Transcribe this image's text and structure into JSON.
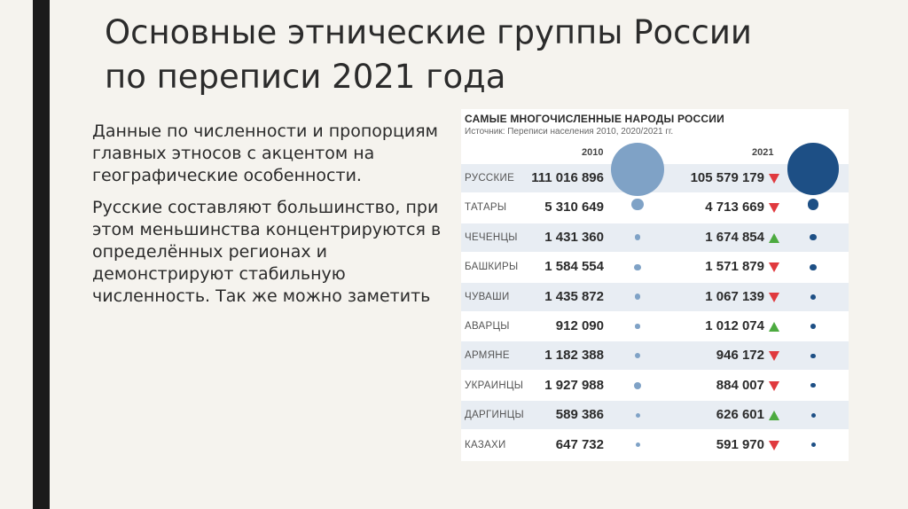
{
  "slide": {
    "title_line1": "Основные этнические группы России",
    "title_line2": "по переписи 2021 года",
    "paragraph1": "Данные по численности и пропорциям главных этносов с акцентом на географические особенности.",
    "paragraph2": "Русские составляют большинство, при этом меньшинства концентрируются в определённых регионах и демонстрируют стабильную численность. Так же можно заметить"
  },
  "infographic": {
    "title": "САМЫЕ МНОГОЧИСЛЕННЫЕ НАРОДЫ РОССИИ",
    "source": "Источник: Переписи населения 2010, 2020/2021 гг.",
    "year_2010": "2010",
    "year_2021": "2021",
    "colors": {
      "circle_2010": "#7fa2c6",
      "circle_2021": "#1d4f85",
      "arrow_up": "#4caa3f",
      "arrow_down": "#e0393e"
    },
    "rows": [
      {
        "name": "РУССКИЕ",
        "v2010": "111 016 896",
        "v2021": "105 579 179",
        "trend": "down",
        "n2010": 111016896,
        "n2021": 105579179
      },
      {
        "name": "ТАТАРЫ",
        "v2010": "5 310 649",
        "v2021": "4 713 669",
        "trend": "down",
        "n2010": 5310649,
        "n2021": 4713669
      },
      {
        "name": "ЧЕЧЕНЦЫ",
        "v2010": "1 431 360",
        "v2021": "1 674 854",
        "trend": "up",
        "n2010": 1431360,
        "n2021": 1674854
      },
      {
        "name": "БАШКИРЫ",
        "v2010": "1 584 554",
        "v2021": "1 571 879",
        "trend": "down",
        "n2010": 1584554,
        "n2021": 1571879
      },
      {
        "name": "ЧУВАШИ",
        "v2010": "1 435 872",
        "v2021": "1 067 139",
        "trend": "down",
        "n2010": 1435872,
        "n2021": 1067139
      },
      {
        "name": "АВАРЦЫ",
        "v2010": "912 090",
        "v2021": "1 012 074",
        "trend": "up",
        "n2010": 912090,
        "n2021": 1012074
      },
      {
        "name": "АРМЯНЕ",
        "v2010": "1 182 388",
        "v2021": "946 172",
        "trend": "down",
        "n2010": 1182388,
        "n2021": 946172
      },
      {
        "name": "УКРАИНЦЫ",
        "v2010": "1 927 988",
        "v2021": "884 007",
        "trend": "down",
        "n2010": 1927988,
        "n2021": 884007
      },
      {
        "name": "ДАРГИНЦЫ",
        "v2010": "589 386",
        "v2021": "626 601",
        "trend": "up",
        "n2010": 589386,
        "n2021": 626601
      },
      {
        "name": "КАЗАХИ",
        "v2010": "647 732",
        "v2021": "591 970",
        "trend": "down",
        "n2010": 647732,
        "n2021": 591970
      }
    ]
  }
}
